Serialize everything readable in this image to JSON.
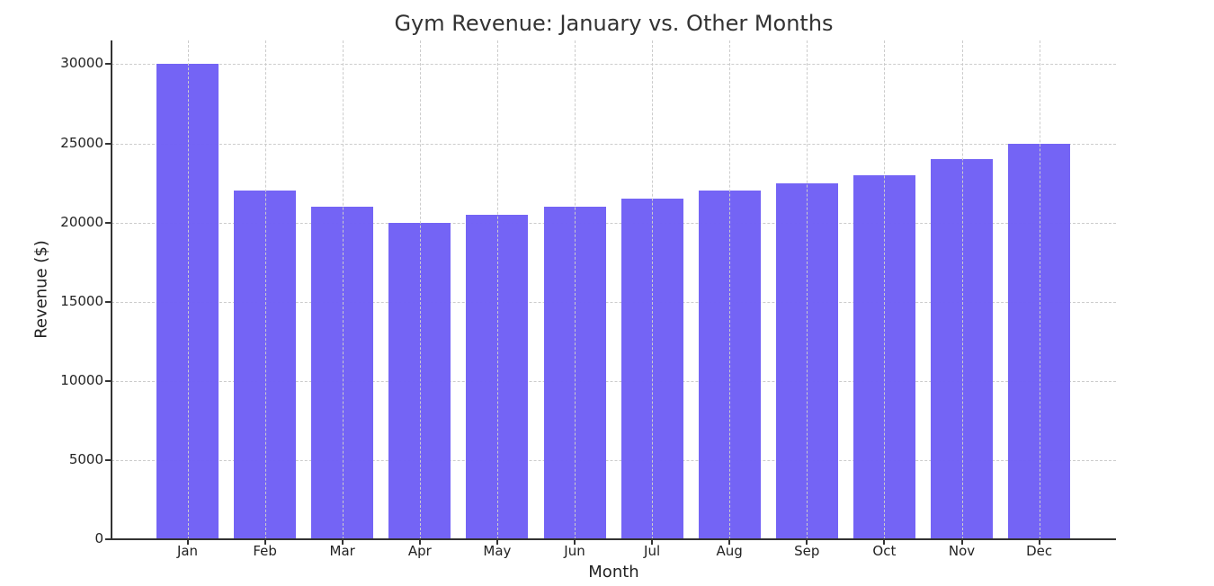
{
  "chart_data": {
    "type": "bar",
    "title": "Gym Revenue: January vs. Other Months",
    "xlabel": "Month",
    "ylabel": "Revenue ($)",
    "categories": [
      "Jan",
      "Feb",
      "Mar",
      "Apr",
      "May",
      "Jun",
      "Jul",
      "Aug",
      "Sep",
      "Oct",
      "Nov",
      "Dec"
    ],
    "values": [
      30000,
      22000,
      21000,
      20000,
      20500,
      21000,
      21500,
      22000,
      22500,
      23000,
      24000,
      25000
    ],
    "ylim": [
      0,
      31500
    ],
    "yticks": [
      "0",
      "5000",
      "10000",
      "15000",
      "20000",
      "25000",
      "30000"
    ],
    "grid": true,
    "bar_color": "#7161f5",
    "legend": null
  }
}
